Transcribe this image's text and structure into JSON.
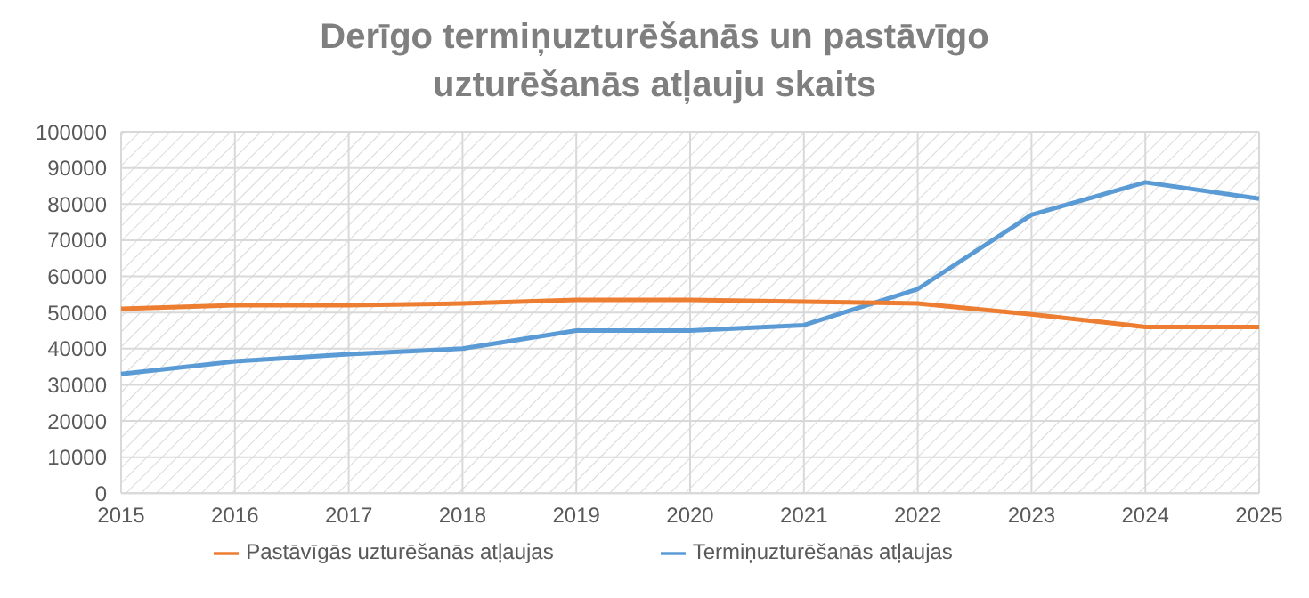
{
  "chart_data": {
    "type": "line",
    "title": "Derīgo termiņuzturēšanās un pastāvīgo uzturēšanās atļauju skaits",
    "categories": [
      "2015",
      "2016",
      "2017",
      "2018",
      "2019",
      "2020",
      "2021",
      "2022",
      "2023",
      "2024",
      "2025"
    ],
    "series": [
      {
        "name": "Termiņuzturēšanās atļaujas",
        "color": "#5b9bd5",
        "values": [
          33000,
          36500,
          38500,
          40000,
          45000,
          45000,
          46500,
          56500,
          77000,
          86000,
          81500
        ]
      },
      {
        "name": "Pastāvīgās uzturēšanās atļaujas",
        "color": "#ed7d31",
        "values": [
          51000,
          52000,
          52000,
          52500,
          53500,
          53500,
          53000,
          52500,
          49500,
          46000,
          46000
        ]
      }
    ],
    "ylim": [
      0,
      100000
    ],
    "yticks": [
      0,
      10000,
      20000,
      30000,
      40000,
      50000,
      60000,
      70000,
      80000,
      90000,
      100000
    ],
    "grid": true,
    "legend": "bottom",
    "marker": "none",
    "line_style": "solid"
  }
}
